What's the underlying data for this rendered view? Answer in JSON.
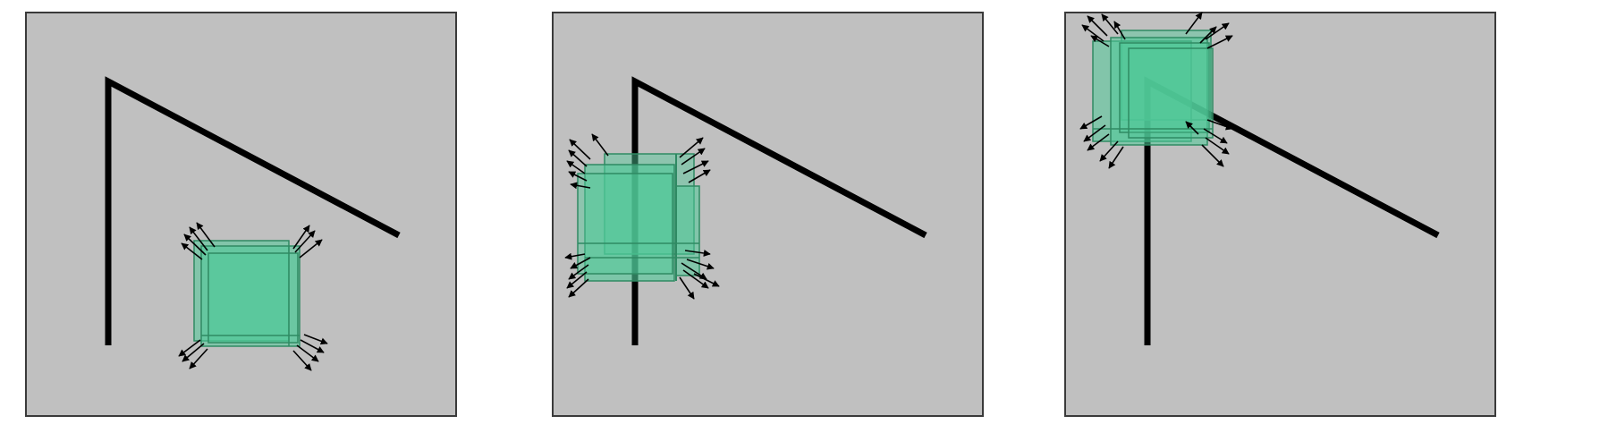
{
  "figure": {
    "panel_count": 3,
    "colors": {
      "panel_fill": "#c0c0c0",
      "panel_border": "#3a3a3a",
      "wall": "#000000",
      "box_fill": "#4fc998",
      "box_edge": "#2f8a63",
      "arrow": "#000000"
    },
    "panels": [
      {
        "name": "panel-1",
        "box_position": "below-hypotenuse",
        "box_overlaps_wall": false
      },
      {
        "name": "panel-2",
        "box_position": "on-vertical-wall",
        "box_overlaps_wall": true
      },
      {
        "name": "panel-3",
        "box_position": "at-corner",
        "box_overlaps_wall": true
      }
    ]
  }
}
